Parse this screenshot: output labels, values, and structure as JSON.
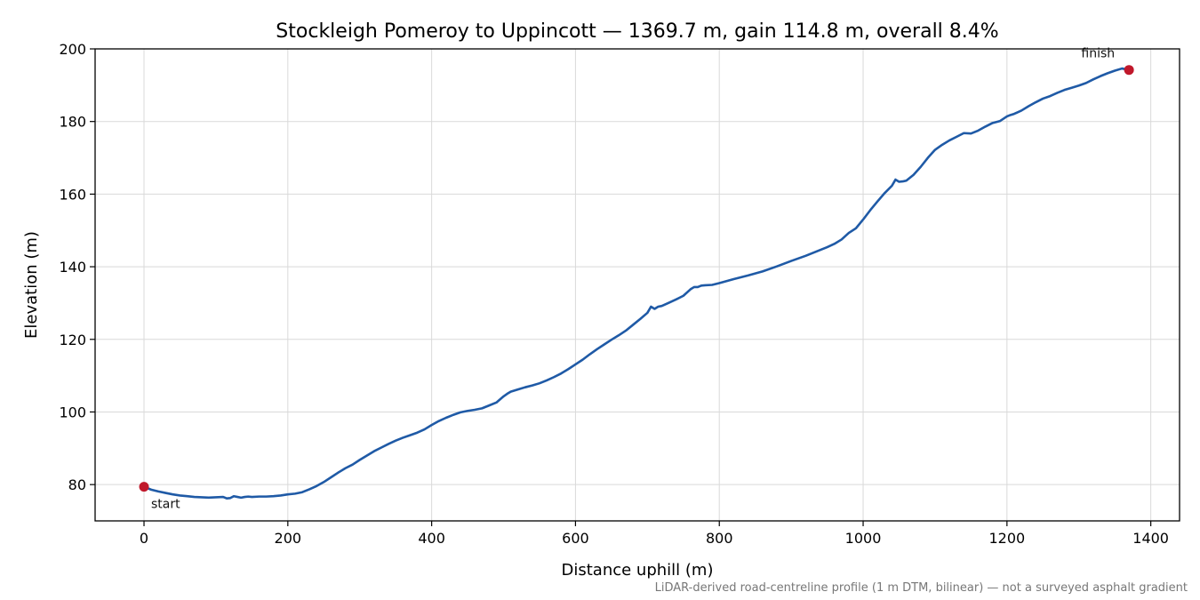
{
  "chart_data": {
    "type": "line",
    "title": "Stockleigh Pomeroy to Uppincott — 1369.7 m, gain 114.8 m, overall 8.4%",
    "xlabel": "Distance uphill (m)",
    "ylabel": "Elevation (m)",
    "xlim": [
      -68,
      1440
    ],
    "ylim": [
      70,
      200
    ],
    "xticks": [
      0,
      200,
      400,
      600,
      800,
      1000,
      1200,
      1400
    ],
    "yticks": [
      80,
      100,
      120,
      140,
      160,
      180,
      200
    ],
    "grid": true,
    "line_color": "#1f5aa6",
    "marker_color": "#c0182b",
    "footnote": "LiDAR-derived road-centreline profile (1 m DTM, bilinear) — not a surveyed asphalt gradient",
    "series": [
      {
        "x": [
          0,
          10,
          20,
          30,
          40,
          50,
          60,
          70,
          80,
          90,
          100,
          110,
          115,
          120,
          125,
          130,
          135,
          140,
          145,
          150,
          160,
          170,
          180,
          190,
          200,
          210,
          220,
          230,
          240,
          250,
          260,
          270,
          280,
          290,
          300,
          310,
          320,
          330,
          340,
          350,
          360,
          370,
          380,
          390,
          400,
          410,
          420,
          430,
          440,
          450,
          460,
          470,
          480,
          490,
          500,
          505,
          510,
          520,
          530,
          540,
          550,
          560,
          570,
          580,
          590,
          600,
          610,
          620,
          630,
          640,
          650,
          660,
          670,
          680,
          690,
          700,
          705,
          710,
          715,
          720,
          730,
          740,
          750,
          760,
          765,
          770,
          775,
          780,
          790,
          800,
          820,
          840,
          860,
          880,
          900,
          920,
          940,
          950,
          960,
          970,
          980,
          990,
          1000,
          1010,
          1020,
          1030,
          1040,
          1045,
          1050,
          1055,
          1060,
          1070,
          1080,
          1090,
          1100,
          1110,
          1120,
          1130,
          1140,
          1150,
          1160,
          1170,
          1180,
          1190,
          1200,
          1205,
          1210,
          1220,
          1230,
          1240,
          1250,
          1260,
          1270,
          1280,
          1290,
          1300,
          1310,
          1320,
          1330,
          1340,
          1350,
          1360,
          1369.7
        ],
        "y": [
          79.4,
          78.6,
          78.1,
          77.7,
          77.3,
          77.0,
          76.8,
          76.6,
          76.5,
          76.4,
          76.5,
          76.6,
          76.2,
          76.3,
          76.8,
          76.6,
          76.4,
          76.6,
          76.7,
          76.6,
          76.7,
          76.7,
          76.8,
          77.0,
          77.3,
          77.5,
          77.9,
          78.7,
          79.6,
          80.7,
          82.0,
          83.3,
          84.5,
          85.5,
          86.8,
          88.0,
          89.2,
          90.2,
          91.2,
          92.1,
          92.9,
          93.6,
          94.3,
          95.2,
          96.4,
          97.5,
          98.4,
          99.2,
          99.9,
          100.3,
          100.6,
          101.0,
          101.8,
          102.6,
          104.3,
          105.0,
          105.6,
          106.2,
          106.8,
          107.3,
          107.9,
          108.7,
          109.6,
          110.6,
          111.8,
          113.1,
          114.4,
          115.9,
          117.3,
          118.6,
          119.9,
          121.1,
          122.4,
          124.0,
          125.6,
          127.3,
          129.0,
          128.4,
          129.0,
          129.2,
          130.1,
          131.0,
          132.0,
          133.8,
          134.4,
          134.4,
          134.8,
          134.9,
          135.0,
          135.5,
          136.6,
          137.6,
          138.7,
          140.1,
          141.6,
          143.0,
          144.6,
          145.4,
          146.3,
          147.5,
          149.3,
          150.6,
          153.0,
          155.6,
          158.0,
          160.3,
          162.3,
          164.0,
          163.4,
          163.5,
          163.7,
          165.3,
          167.5,
          170.0,
          172.2,
          173.6,
          174.8,
          175.8,
          176.8,
          176.7,
          177.5,
          178.6,
          179.6,
          180.1,
          181.4,
          181.8,
          182.1,
          183.0,
          184.2,
          185.3,
          186.3,
          187.0,
          187.9,
          188.7,
          189.3,
          189.9,
          190.6,
          191.6,
          192.5,
          193.3,
          194.0,
          194.6,
          194.2
        ]
      }
    ],
    "annotations": [
      {
        "label": "start",
        "x": 0,
        "y": 79.4
      },
      {
        "label": "finish",
        "x": 1369.7,
        "y": 194.2
      }
    ]
  }
}
